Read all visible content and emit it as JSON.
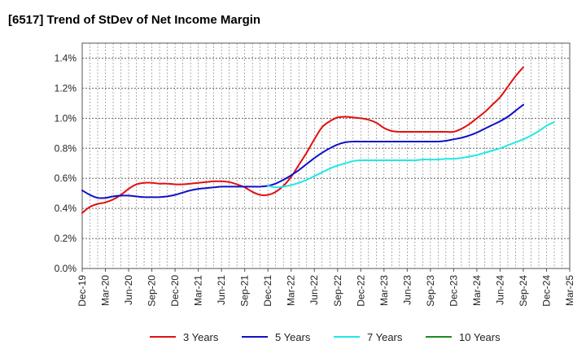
{
  "chart_data": {
    "type": "line",
    "title": "[6517]  Trend of StDev of Net Income Margin",
    "xlabel": "",
    "ylabel": "",
    "x_tick_labels": [
      "Dec-19",
      "Mar-20",
      "Jun-20",
      "Sep-20",
      "Dec-20",
      "Mar-21",
      "Jun-21",
      "Sep-21",
      "Dec-21",
      "Mar-22",
      "Jun-22",
      "Sep-22",
      "Dec-22",
      "Mar-23",
      "Jun-23",
      "Sep-23",
      "Dec-23",
      "Mar-24",
      "Jun-24",
      "Sep-24",
      "Dec-24",
      "Mar-25"
    ],
    "y_tick_labels": [
      "0.0%",
      "0.2%",
      "0.4%",
      "0.6%",
      "0.8%",
      "1.0%",
      "1.2%",
      "1.4%"
    ],
    "y_ticks": [
      0,
      0.2,
      0.4,
      0.6,
      0.8,
      1.0,
      1.2,
      1.4
    ],
    "ylim": [
      0,
      1.5
    ],
    "grid": true,
    "legend_position": "bottom",
    "series": [
      {
        "name": "3 Years",
        "color": "#e01010",
        "points": [
          [
            "Dec-19",
            0.37
          ],
          [
            "Jan-20",
            0.41
          ],
          [
            "Feb-20",
            0.43
          ],
          [
            "Mar-20",
            0.44
          ],
          [
            "Apr-20",
            0.46
          ],
          [
            "May-20",
            0.49
          ],
          [
            "Jun-20",
            0.53
          ],
          [
            "Jul-20",
            0.56
          ],
          [
            "Aug-20",
            0.57
          ],
          [
            "Sep-20",
            0.57
          ],
          [
            "Oct-20",
            0.565
          ],
          [
            "Nov-20",
            0.565
          ],
          [
            "Dec-20",
            0.56
          ],
          [
            "Jan-21",
            0.56
          ],
          [
            "Feb-21",
            0.565
          ],
          [
            "Mar-21",
            0.57
          ],
          [
            "Apr-21",
            0.575
          ],
          [
            "May-21",
            0.58
          ],
          [
            "Jun-21",
            0.58
          ],
          [
            "Jul-21",
            0.575
          ],
          [
            "Aug-21",
            0.56
          ],
          [
            "Sep-21",
            0.54
          ],
          [
            "Oct-21",
            0.51
          ],
          [
            "Nov-21",
            0.49
          ],
          [
            "Dec-21",
            0.49
          ],
          [
            "Jan-22",
            0.51
          ],
          [
            "Feb-22",
            0.55
          ],
          [
            "Mar-22",
            0.61
          ],
          [
            "Apr-22",
            0.69
          ],
          [
            "May-22",
            0.77
          ],
          [
            "Jun-22",
            0.86
          ],
          [
            "Jul-22",
            0.94
          ],
          [
            "Aug-22",
            0.98
          ],
          [
            "Sep-22",
            1.005
          ],
          [
            "Oct-22",
            1.01
          ],
          [
            "Nov-22",
            1.005
          ],
          [
            "Dec-22",
            1.0
          ],
          [
            "Jan-23",
            0.99
          ],
          [
            "Feb-23",
            0.97
          ],
          [
            "Mar-23",
            0.935
          ],
          [
            "Apr-23",
            0.915
          ],
          [
            "May-23",
            0.91
          ],
          [
            "Jun-23",
            0.91
          ],
          [
            "Jul-23",
            0.91
          ],
          [
            "Aug-23",
            0.91
          ],
          [
            "Sep-23",
            0.91
          ],
          [
            "Oct-23",
            0.91
          ],
          [
            "Nov-23",
            0.91
          ],
          [
            "Dec-23",
            0.91
          ],
          [
            "Jan-24",
            0.93
          ],
          [
            "Feb-24",
            0.96
          ],
          [
            "Mar-24",
            1.0
          ],
          [
            "Apr-24",
            1.04
          ],
          [
            "May-24",
            1.09
          ],
          [
            "Jun-24",
            1.14
          ],
          [
            "Jul-24",
            1.21
          ],
          [
            "Aug-24",
            1.28
          ],
          [
            "Sep-24",
            1.34
          ]
        ]
      },
      {
        "name": "5 Years",
        "color": "#1010c8",
        "points": [
          [
            "Dec-19",
            0.52
          ],
          [
            "Jan-20",
            0.49
          ],
          [
            "Feb-20",
            0.47
          ],
          [
            "Mar-20",
            0.47
          ],
          [
            "Apr-20",
            0.48
          ],
          [
            "May-20",
            0.485
          ],
          [
            "Jun-20",
            0.485
          ],
          [
            "Jul-20",
            0.48
          ],
          [
            "Aug-20",
            0.475
          ],
          [
            "Sep-20",
            0.475
          ],
          [
            "Oct-20",
            0.475
          ],
          [
            "Nov-20",
            0.48
          ],
          [
            "Dec-20",
            0.49
          ],
          [
            "Jan-21",
            0.505
          ],
          [
            "Feb-21",
            0.52
          ],
          [
            "Mar-21",
            0.53
          ],
          [
            "Apr-21",
            0.535
          ],
          [
            "May-21",
            0.54
          ],
          [
            "Jun-21",
            0.545
          ],
          [
            "Jul-21",
            0.545
          ],
          [
            "Aug-21",
            0.545
          ],
          [
            "Sep-21",
            0.545
          ],
          [
            "Oct-21",
            0.545
          ],
          [
            "Nov-21",
            0.545
          ],
          [
            "Dec-21",
            0.55
          ],
          [
            "Jan-22",
            0.565
          ],
          [
            "Feb-22",
            0.59
          ],
          [
            "Mar-22",
            0.62
          ],
          [
            "Apr-22",
            0.655
          ],
          [
            "May-22",
            0.695
          ],
          [
            "Jun-22",
            0.735
          ],
          [
            "Jul-22",
            0.77
          ],
          [
            "Aug-22",
            0.8
          ],
          [
            "Sep-22",
            0.825
          ],
          [
            "Oct-22",
            0.84
          ],
          [
            "Nov-22",
            0.845
          ],
          [
            "Dec-22",
            0.845
          ],
          [
            "Jan-23",
            0.845
          ],
          [
            "Feb-23",
            0.845
          ],
          [
            "Mar-23",
            0.845
          ],
          [
            "Apr-23",
            0.845
          ],
          [
            "May-23",
            0.845
          ],
          [
            "Jun-23",
            0.845
          ],
          [
            "Jul-23",
            0.845
          ],
          [
            "Aug-23",
            0.845
          ],
          [
            "Sep-23",
            0.845
          ],
          [
            "Oct-23",
            0.845
          ],
          [
            "Nov-23",
            0.85
          ],
          [
            "Dec-23",
            0.86
          ],
          [
            "Jan-24",
            0.87
          ],
          [
            "Feb-24",
            0.885
          ],
          [
            "Mar-24",
            0.905
          ],
          [
            "Apr-24",
            0.93
          ],
          [
            "May-24",
            0.955
          ],
          [
            "Jun-24",
            0.98
          ],
          [
            "Jul-24",
            1.01
          ],
          [
            "Aug-24",
            1.05
          ],
          [
            "Sep-24",
            1.09
          ]
        ]
      },
      {
        "name": "7 Years",
        "color": "#20e8e8",
        "points": [
          [
            "Dec-21",
            0.55
          ],
          [
            "Jan-22",
            0.54
          ],
          [
            "Feb-22",
            0.545
          ],
          [
            "Mar-22",
            0.555
          ],
          [
            "Apr-22",
            0.57
          ],
          [
            "May-22",
            0.59
          ],
          [
            "Jun-22",
            0.615
          ],
          [
            "Jul-22",
            0.64
          ],
          [
            "Aug-22",
            0.665
          ],
          [
            "Sep-22",
            0.685
          ],
          [
            "Oct-22",
            0.7
          ],
          [
            "Nov-22",
            0.715
          ],
          [
            "Dec-22",
            0.72
          ],
          [
            "Jan-23",
            0.72
          ],
          [
            "Feb-23",
            0.72
          ],
          [
            "Mar-23",
            0.72
          ],
          [
            "Apr-23",
            0.72
          ],
          [
            "May-23",
            0.72
          ],
          [
            "Jun-23",
            0.72
          ],
          [
            "Jul-23",
            0.72
          ],
          [
            "Aug-23",
            0.725
          ],
          [
            "Sep-23",
            0.725
          ],
          [
            "Oct-23",
            0.725
          ],
          [
            "Nov-23",
            0.73
          ],
          [
            "Dec-23",
            0.73
          ],
          [
            "Jan-24",
            0.735
          ],
          [
            "Feb-24",
            0.745
          ],
          [
            "Mar-24",
            0.755
          ],
          [
            "Apr-24",
            0.77
          ],
          [
            "May-24",
            0.785
          ],
          [
            "Jun-24",
            0.8
          ],
          [
            "Jul-24",
            0.82
          ],
          [
            "Aug-24",
            0.84
          ],
          [
            "Sep-24",
            0.86
          ],
          [
            "Oct-24",
            0.885
          ],
          [
            "Nov-24",
            0.915
          ],
          [
            "Dec-24",
            0.95
          ],
          [
            "Jan-25",
            0.975
          ]
        ]
      },
      {
        "name": "10 Years",
        "color": "#208a20",
        "points": []
      }
    ]
  }
}
